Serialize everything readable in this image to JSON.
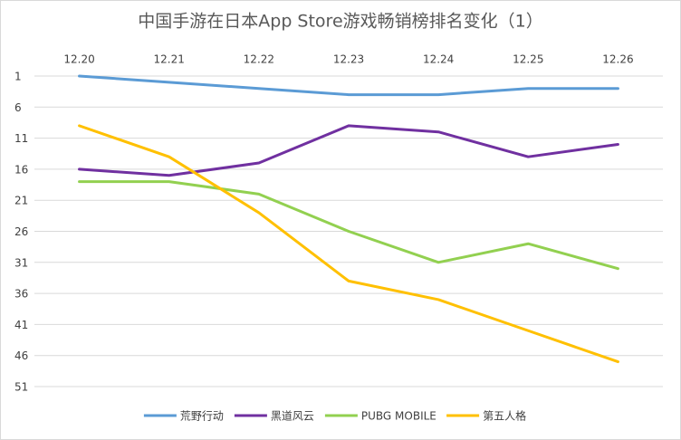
{
  "chart_data": {
    "type": "line",
    "title": "中国手游在日本App Store游戏畅销榜排名变化（1）",
    "categories": [
      "12.20",
      "12.21",
      "12.22",
      "12.23",
      "12.24",
      "12.25",
      "12.26"
    ],
    "series": [
      {
        "name": "荒野行动",
        "color": "#5b9bd5",
        "values": [
          1,
          2,
          3,
          4,
          4,
          3,
          3
        ]
      },
      {
        "name": "黑道风云",
        "color": "#7030a0",
        "values": [
          16,
          17,
          15,
          9,
          10,
          14,
          12
        ]
      },
      {
        "name": "PUBG MOBILE",
        "color": "#92d050",
        "values": [
          18,
          18,
          20,
          26,
          31,
          28,
          32
        ]
      },
      {
        "name": "第五人格",
        "color": "#ffc000",
        "values": [
          9,
          14,
          23,
          34,
          37,
          42,
          47
        ]
      }
    ],
    "ylim": [
      1,
      51
    ],
    "yticks": [
      1,
      6,
      11,
      16,
      21,
      26,
      31,
      36,
      41,
      46,
      51
    ],
    "y_reversed": true,
    "grid": true,
    "legend": "bottom"
  }
}
